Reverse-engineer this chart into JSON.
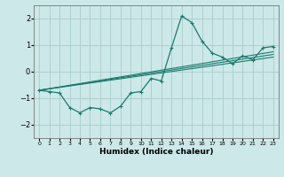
{
  "background_color": "#cce8e8",
  "grid_color": "#aacccc",
  "line_color": "#1a7a6e",
  "marker_color": "#1a7a6e",
  "xlabel": "Humidex (Indice chaleur)",
  "ylim": [
    -2.5,
    2.5
  ],
  "xlim": [
    -0.5,
    23.5
  ],
  "yticks": [
    -2,
    -1,
    0,
    1,
    2
  ],
  "xticks": [
    0,
    1,
    2,
    3,
    4,
    5,
    6,
    7,
    8,
    9,
    10,
    11,
    12,
    13,
    14,
    15,
    16,
    17,
    18,
    19,
    20,
    21,
    22,
    23
  ],
  "series": [
    [
      0,
      -0.7
    ],
    [
      1,
      -0.75
    ],
    [
      2,
      -0.8
    ],
    [
      3,
      -1.35
    ],
    [
      4,
      -1.55
    ],
    [
      5,
      -1.35
    ],
    [
      6,
      -1.4
    ],
    [
      7,
      -1.55
    ],
    [
      8,
      -1.3
    ],
    [
      9,
      -0.8
    ],
    [
      10,
      -0.75
    ],
    [
      11,
      -0.25
    ],
    [
      12,
      -0.35
    ],
    [
      13,
      0.9
    ],
    [
      14,
      2.1
    ],
    [
      15,
      1.85
    ],
    [
      16,
      1.15
    ],
    [
      17,
      0.7
    ],
    [
      18,
      0.55
    ],
    [
      19,
      0.3
    ],
    [
      20,
      0.6
    ],
    [
      21,
      0.45
    ],
    [
      22,
      0.9
    ],
    [
      23,
      0.95
    ]
  ],
  "line2": [
    [
      0,
      -0.7
    ],
    [
      23,
      0.55
    ]
  ],
  "line3": [
    [
      0,
      -0.7
    ],
    [
      23,
      0.65
    ]
  ],
  "line4": [
    [
      0,
      -0.7
    ],
    [
      23,
      0.75
    ]
  ]
}
